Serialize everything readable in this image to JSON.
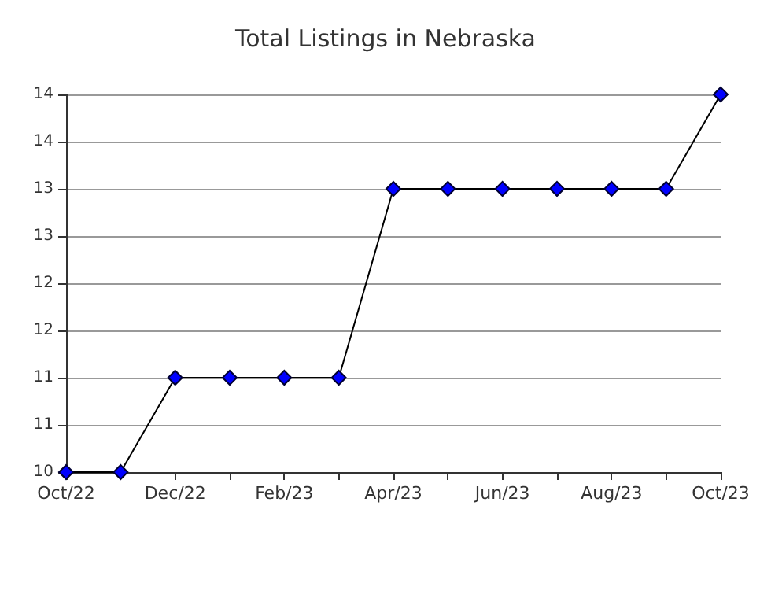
{
  "chart_data": {
    "type": "line",
    "title": "Total Listings in Nebraska",
    "categories": [
      "Oct/22",
      null,
      "Dec/22",
      null,
      "Feb/23",
      null,
      "Apr/23",
      null,
      "Jun/23",
      null,
      "Aug/23",
      null,
      "Oct/23"
    ],
    "series": [
      {
        "color": "#0000ff",
        "values": [
          10,
          10,
          11,
          11,
          11,
          11,
          13,
          13,
          13,
          13,
          13,
          13,
          14
        ]
      }
    ],
    "ylim": [
      10,
      14
    ],
    "yticks": [
      10,
      {
        "value": 10.5,
        "label": "11"
      },
      11,
      {
        "value": 11.5,
        "label": "12"
      },
      12,
      {
        "value": 12.5,
        "label": "13"
      },
      13,
      {
        "value": 13.5,
        "label": "14"
      },
      14
    ],
    "grid": "y",
    "marker": "diamond",
    "line_style": "solid"
  }
}
